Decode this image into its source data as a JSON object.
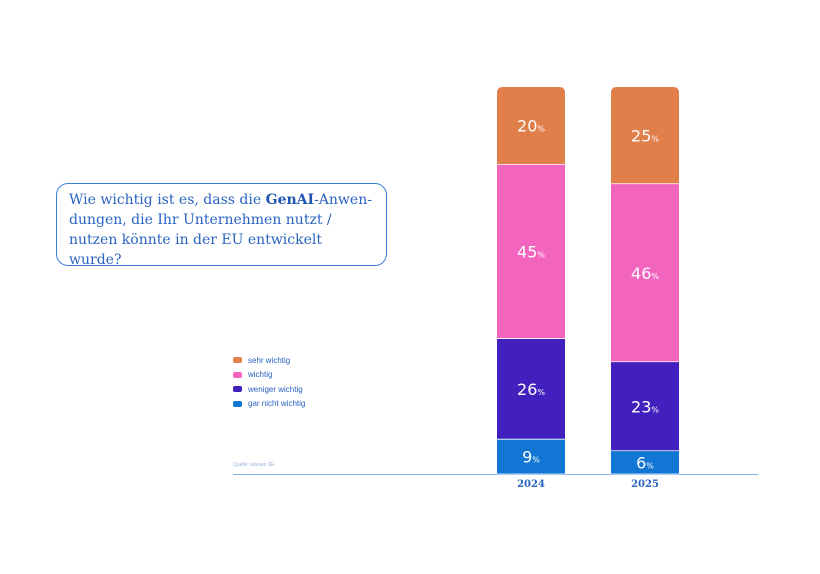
{
  "question": {
    "part1": "Wie wichtig ist es, dass die ",
    "bold": "GenAI",
    "part2": "-Anwen-dungen, die Ihr Unternehmen nutzt / nutzen könnte in der EU entwickelt wurde?"
  },
  "source": "Quelle: adesso SE",
  "chart_data": {
    "type": "bar",
    "stacked": true,
    "categories": [
      "2024",
      "2025"
    ],
    "series": [
      {
        "name": "sehr wichtig",
        "color": "#e07f4a",
        "values": [
          20,
          25
        ]
      },
      {
        "name": "wichtig",
        "color": "#f264bd",
        "values": [
          45,
          46
        ]
      },
      {
        "name": "weniger wichtig",
        "color": "#4220bd",
        "values": [
          26,
          23
        ]
      },
      {
        "name": "gar nicht wichtig",
        "color": "#1276d4",
        "values": [
          9,
          6
        ]
      }
    ],
    "unit": "%",
    "ylim": [
      0,
      100
    ],
    "legend": "left"
  }
}
